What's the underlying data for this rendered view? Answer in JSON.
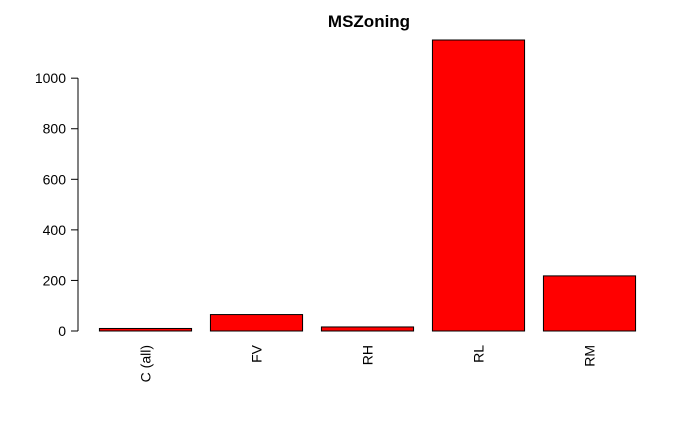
{
  "chart_data": {
    "type": "bar",
    "title": "MSZoning",
    "xlabel": "",
    "ylabel": "",
    "categories": [
      "C (all)",
      "FV",
      "RH",
      "RL",
      "RM"
    ],
    "values": [
      10,
      65,
      16,
      1151,
      218
    ],
    "ylim": [
      0,
      1151
    ],
    "yticks": [
      0,
      200,
      400,
      600,
      800,
      1000
    ],
    "bar_color": "#ff0000",
    "grid": false,
    "x_tick_rotation": "vertical"
  }
}
